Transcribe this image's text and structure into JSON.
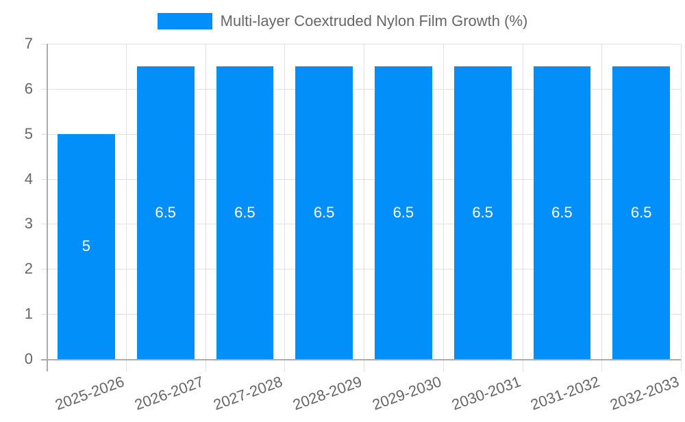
{
  "legend": {
    "label": "Multi-layer Coextruded Nylon Film Growth (%)",
    "color": "#038ffa"
  },
  "chart_data": {
    "type": "bar",
    "title": "",
    "categories": [
      "2025-2026",
      "2026-2027",
      "2027-2028",
      "2028-2029",
      "2029-2030",
      "2030-2031",
      "2031-2032",
      "2032-2033"
    ],
    "series": [
      {
        "name": "Multi-layer Coextruded Nylon Film Growth (%)",
        "values": [
          5,
          6.5,
          6.5,
          6.5,
          6.5,
          6.5,
          6.5,
          6.5
        ],
        "color": "#038ffa"
      }
    ],
    "data_labels": [
      "5",
      "6.5",
      "6.5",
      "6.5",
      "6.5",
      "6.5",
      "6.5",
      "6.5"
    ],
    "xlabel": "",
    "ylabel": "",
    "ylim": [
      0,
      7
    ],
    "yticks": [
      "0",
      "1",
      "2",
      "3",
      "4",
      "5",
      "6",
      "7"
    ],
    "grid": true,
    "legend_position": "top"
  }
}
